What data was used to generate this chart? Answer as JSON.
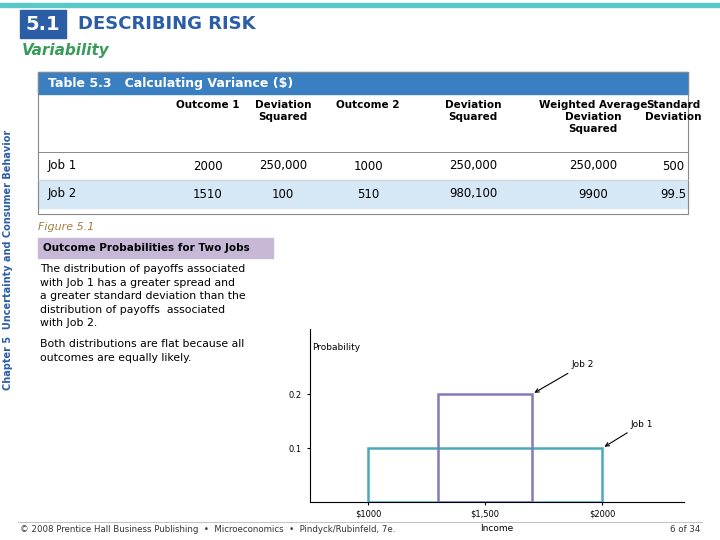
{
  "title_box_color": "#2B5EA7",
  "title_number": "5.1",
  "title_text": "DESCRIBING RISK",
  "title_text_color": "#2B5EA7",
  "subtitle": "Variability",
  "subtitle_color": "#3A9A5C",
  "table_header_bg": "#3A7FC1",
  "table_header_text": "Table 5.3   Calculating Variance ($)",
  "table_header_text_color": "#FFFFFF",
  "table_body_bg": "#FFFFFF",
  "table_alt_bg": "#D6E8F5",
  "col_headers_line1": [
    "",
    "Outcome 1",
    "Deviation",
    "Outcome 2",
    "Deviation",
    "Weighted Average",
    "Standard"
  ],
  "col_headers_line2": [
    "",
    "",
    "Squared",
    "",
    "Squared",
    "Deviation",
    "Deviation"
  ],
  "col_headers_line3": [
    "",
    "",
    "",
    "",
    "",
    "Squared",
    ""
  ],
  "rows": [
    [
      "Job 1",
      "2000",
      "250,000",
      "1000",
      "250,000",
      "250,000",
      "500"
    ],
    [
      "Job 2",
      "1510",
      "100",
      "510",
      "980,100",
      "9900",
      "99.5"
    ]
  ],
  "figure_label": "Figure 5.1",
  "figure_label_color": "#A08040",
  "chart_title": "Outcome Probabilities for Two Jobs",
  "chart_title_bg": "#C8B8D8",
  "chart_title_text_color": "#000000",
  "description_text1": "The distribution of payoffs associated\nwith Job 1 has a greater spread and\na greater standard deviation than the\ndistribution of payoffs  associated\nwith Job 2.",
  "description_text2": "Both distributions are flat because all\noutcomes are equally likely.",
  "footer_text": "© 2008 Prentice Hall Business Publishing  •  Microeconomics  •  Pindyck/Rubinfeld, 7e.",
  "footer_page": "6 of 34",
  "top_line_color": "#5BC8C8",
  "bg_color": "#FFFFFF",
  "side_text": "Chapter 5  Uncertainty and Consumer Behavior",
  "side_text_color": "#2B5EA7",
  "job1_color": "#4AABB8",
  "job2_color": "#8878B8"
}
